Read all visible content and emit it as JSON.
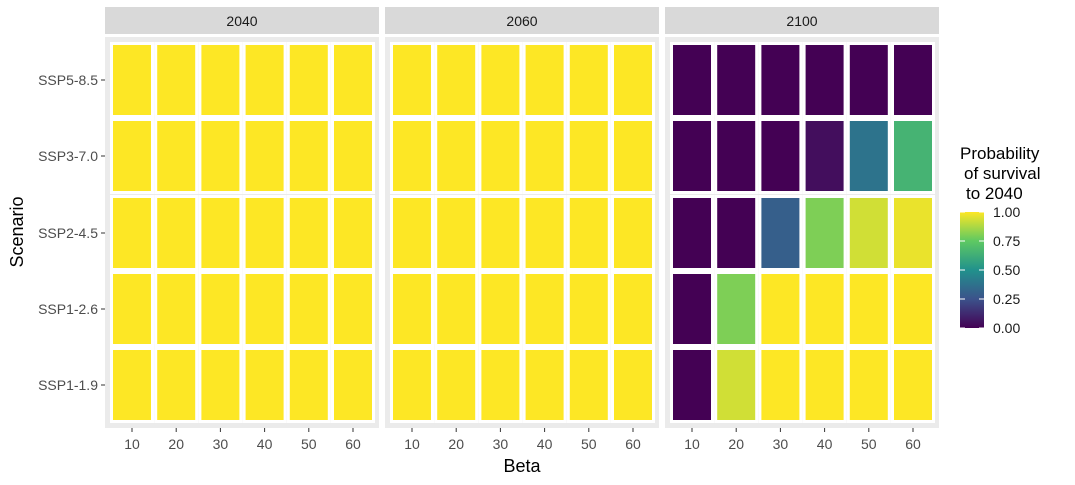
{
  "chart_data": {
    "type": "heatmap",
    "xlabel": "Beta",
    "ylabel": "Scenario",
    "x": [
      "10",
      "20",
      "30",
      "40",
      "50",
      "60"
    ],
    "y": [
      "SSP1-1.9",
      "SSP1-2.6",
      "SSP2-4.5",
      "SSP3-7.0",
      "SSP5-8.5"
    ],
    "facets": [
      {
        "label": "2040",
        "values": [
          [
            1,
            1,
            1,
            1,
            1,
            1
          ],
          [
            1,
            1,
            1,
            1,
            1,
            1
          ],
          [
            1,
            1,
            1,
            1,
            1,
            1
          ],
          [
            1,
            1,
            1,
            1,
            1,
            1
          ],
          [
            1,
            1,
            1,
            1,
            1,
            1
          ]
        ]
      },
      {
        "label": "2060",
        "values": [
          [
            1,
            1,
            1,
            1,
            1,
            1
          ],
          [
            1,
            1,
            1,
            1,
            1,
            1
          ],
          [
            1,
            1,
            1,
            1,
            1,
            1
          ],
          [
            1,
            1,
            1,
            1,
            1,
            1
          ],
          [
            1,
            1,
            1,
            1,
            1,
            1
          ]
        ]
      },
      {
        "label": "2100",
        "values": [
          [
            0.0,
            0.93,
            1,
            1,
            1,
            1
          ],
          [
            0.0,
            0.8,
            1,
            1,
            1,
            1
          ],
          [
            0.0,
            0.0,
            0.3,
            0.8,
            0.93,
            0.97
          ],
          [
            0.0,
            0.0,
            0.0,
            0.04,
            0.38,
            0.65
          ],
          [
            0.0,
            0.0,
            0.0,
            0.0,
            0.0,
            0.0
          ]
        ]
      }
    ],
    "legend": {
      "title_lines": [
        "Probability",
        "of survival",
        "to 2040"
      ],
      "ticks": [
        "0.00",
        "0.25",
        "0.50",
        "0.75",
        "1.00"
      ],
      "range": [
        0,
        1
      ],
      "placement": "right",
      "palette": "viridis"
    },
    "grid": true
  },
  "colors": {
    "panel_background": "#ebebeb",
    "strip_background": "#d9d9d9",
    "tile_border": "#ffffff",
    "viridis": [
      "#440154",
      "#3b528b",
      "#21918c",
      "#5ec962",
      "#fde725"
    ]
  }
}
